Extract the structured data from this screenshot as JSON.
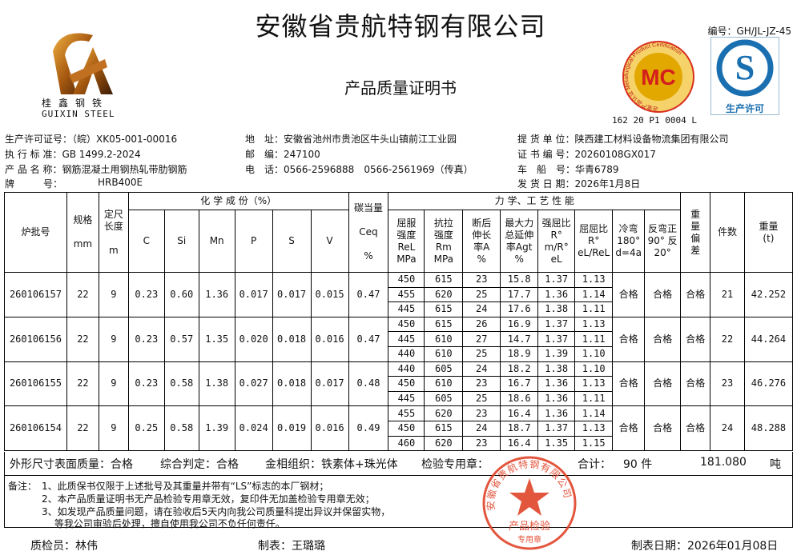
{
  "header": {
    "company": "安徽省贵航特钢有限公司",
    "doc_title": "产品质量证明书",
    "doc_no": "编号：GH/JL-JZ-45",
    "logo_cn": "桂鑫钢铁",
    "logo_en": "GUIXIN STEEL",
    "mc_logo_text": "MC",
    "mc_ring_text": "冶金产品认证 Metallurgical Product Certification",
    "qs_label": "生产许可",
    "cert_no": "162 20 P1 0004 L"
  },
  "info": {
    "license": "生产许可证号：（皖）XK05-001-00016",
    "standard": "执 行 标 准：GB 1499.2-2024",
    "product": "产 品 名 称：钢筋混凝土用钢热轧带肋钢筋",
    "brand_label": "牌　　　号：",
    "brand": "HRB400E",
    "address": "地　址：安徽省池州市贵池区牛头山镇前江工业园",
    "postcode": "邮　编：247100",
    "phone": "电　话：0566-2596888　0566-2561969（传真）",
    "consignee": "提 货 单 位：陕西建工材料设备物流集团有限公司",
    "cert": "证 书 编 号：20260108GX017",
    "vehicle": "车　船　号：华青6789",
    "ship_date": "发 货 日 期：2026年1月8日"
  },
  "table": {
    "h": {
      "batch": "炉批号",
      "spec": "规格",
      "spec_unit": "mm",
      "length": "定尺长度",
      "length_unit": "m",
      "chem": "化 学 成 份（%）",
      "c": "C",
      "si": "Si",
      "mn": "Mn",
      "p": "P",
      "s": "S",
      "v": "V",
      "ceq": "碳当量",
      "ceq_sym": "Ceq",
      "ceq_unit": "%",
      "mech": "力 学、工 艺 性 能",
      "rel": "屈服强度ReL MPa",
      "rm": "抗拉强度Rm MPa",
      "a": "断后伸长率A %",
      "agt": "最大力总延伸率Agt %",
      "ratio1": "强屈比R° m/R° eL",
      "ratio2": "屈屈比R° eL/ReL",
      "cold": "冷弯180° d=4a",
      "rebend": "反弯正90° 反20°",
      "wdev": "重量偏差",
      "pcs": "件数",
      "weight": "重量(t)"
    },
    "rows": [
      {
        "batch": "260106157",
        "spec": "22",
        "length": "9",
        "c": "0.23",
        "si": "0.60",
        "mn": "1.36",
        "p": "0.017",
        "s": "0.017",
        "v": "0.015",
        "ceq": "0.47",
        "mech": [
          [
            "450",
            "615",
            "23",
            "15.8",
            "1.37",
            "1.13"
          ],
          [
            "455",
            "620",
            "25",
            "17.7",
            "1.36",
            "1.14"
          ],
          [
            "445",
            "615",
            "24",
            "17.6",
            "1.38",
            "1.11"
          ]
        ],
        "cold": "合格",
        "rebend": "合格",
        "wdev": "合格",
        "pcs": "21",
        "weight": "42.252"
      },
      {
        "batch": "260106156",
        "spec": "22",
        "length": "9",
        "c": "0.23",
        "si": "0.57",
        "mn": "1.35",
        "p": "0.020",
        "s": "0.018",
        "v": "0.016",
        "ceq": "0.47",
        "mech": [
          [
            "450",
            "615",
            "26",
            "16.9",
            "1.37",
            "1.13"
          ],
          [
            "445",
            "610",
            "27",
            "14.7",
            "1.37",
            "1.11"
          ],
          [
            "440",
            "610",
            "25",
            "18.9",
            "1.39",
            "1.10"
          ]
        ],
        "cold": "合格",
        "rebend": "合格",
        "wdev": "合格",
        "pcs": "22",
        "weight": "44.264"
      },
      {
        "batch": "260106155",
        "spec": "22",
        "length": "9",
        "c": "0.23",
        "si": "0.58",
        "mn": "1.38",
        "p": "0.027",
        "s": "0.018",
        "v": "0.017",
        "ceq": "0.48",
        "mech": [
          [
            "440",
            "605",
            "24",
            "18.2",
            "1.38",
            "1.10"
          ],
          [
            "450",
            "610",
            "23",
            "16.7",
            "1.36",
            "1.13"
          ],
          [
            "445",
            "605",
            "25",
            "18.6",
            "1.36",
            "1.11"
          ]
        ],
        "cold": "合格",
        "rebend": "合格",
        "wdev": "合格",
        "pcs": "23",
        "weight": "46.276"
      },
      {
        "batch": "260106154",
        "spec": "22",
        "length": "9",
        "c": "0.25",
        "si": "0.58",
        "mn": "1.39",
        "p": "0.024",
        "s": "0.019",
        "v": "0.016",
        "ceq": "0.49",
        "mech": [
          [
            "455",
            "620",
            "23",
            "16.4",
            "1.36",
            "1.14"
          ],
          [
            "450",
            "615",
            "24",
            "18.7",
            "1.37",
            "1.13"
          ],
          [
            "460",
            "620",
            "23",
            "16.4",
            "1.35",
            "1.15"
          ]
        ],
        "cold": "合格",
        "rebend": "合格",
        "wdev": "合格",
        "pcs": "24",
        "weight": "48.288"
      }
    ]
  },
  "footer": {
    "appearance": "外形尺寸表面质量：合格",
    "judgement": "综合判定：合格",
    "metallography": "金相组织：铁素体+珠光体",
    "stamp_label": "检验专用章：",
    "total_label": "合计：",
    "total_pcs": "90 件",
    "total_weight": "181.080",
    "weight_unit": "吨"
  },
  "notes": {
    "label": "备注：",
    "items": [
      "1、此质保书仅限于上述批号及其重量并带有“LS”标志的本厂钢材；",
      "2、本产品质量证明书无产品检验专用章无效，复印件无加盖检验专用章无效；",
      "3、如发现产品质量问题，请在验收后5天内向我公司质量科提出异议并保留实物，",
      "　 等我公司审验后处理，擅自使用我公司不负任何责任。"
    ]
  },
  "seal": {
    "ring": "安徽省贵航特钢有限公司",
    "center": "产品检验",
    "bottom": "专用章",
    "color": "#e0442a"
  },
  "signatures": {
    "inspector": "质检员：林伟",
    "preparer": "制表：王璐璐",
    "date": "制表日期：2026年01月08日"
  }
}
